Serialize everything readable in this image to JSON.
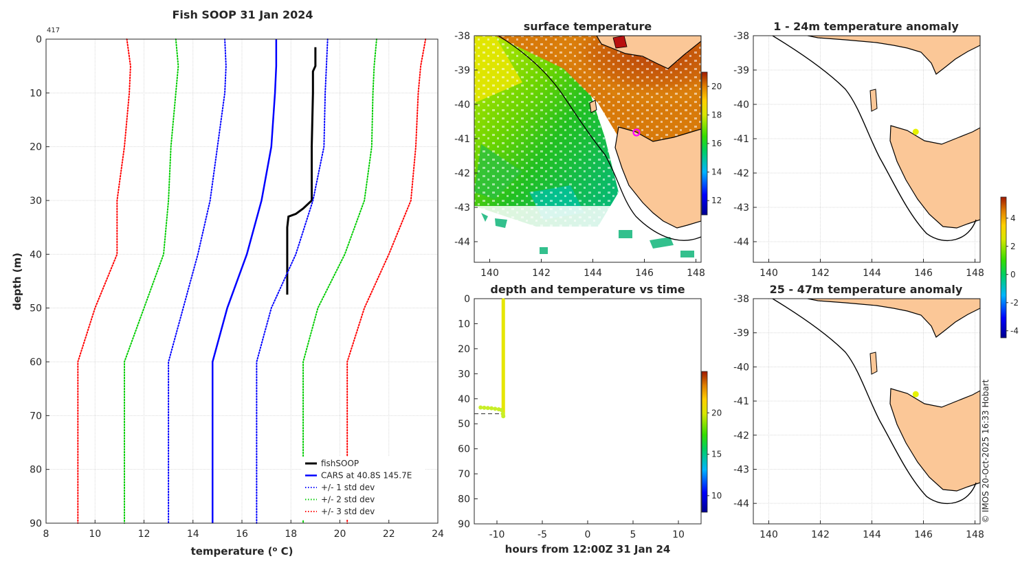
{
  "chart_data": [
    {
      "id": "profile",
      "type": "line",
      "title": "Fish SOOP 31 Jan 2024",
      "xlabel": "temperature (",
      "xlabel_sup": "o",
      "xlabel_tail": " C)",
      "ylabel": "depth (m)",
      "corner_label": "417",
      "xlim": [
        8,
        24
      ],
      "ylim": [
        0,
        90
      ],
      "xticks": [
        8,
        10,
        12,
        14,
        16,
        18,
        20,
        22,
        24
      ],
      "yticks": [
        0,
        10,
        20,
        30,
        40,
        50,
        60,
        70,
        80,
        90
      ],
      "legend_position": "bottom-right",
      "series": [
        {
          "name": "fishSOOP",
          "color": "#000000",
          "style": "solid",
          "width": 3,
          "points": [
            [
              19.0,
              1.5
            ],
            [
              19.0,
              5
            ],
            [
              18.9,
              6
            ],
            [
              18.9,
              10
            ],
            [
              18.85,
              20
            ],
            [
              18.85,
              30
            ],
            [
              18.5,
              31.5
            ],
            [
              18.2,
              32.5
            ],
            [
              17.9,
              33
            ],
            [
              17.85,
              35
            ],
            [
              17.85,
              40
            ],
            [
              17.85,
              47.5
            ]
          ]
        },
        {
          "name": "CARS at 40.8S 145.7E",
          "color": "#0000ff",
          "style": "solid",
          "width": 2.5,
          "points": [
            [
              17.4,
              0
            ],
            [
              17.4,
              5
            ],
            [
              17.35,
              10
            ],
            [
              17.2,
              20
            ],
            [
              16.8,
              30
            ],
            [
              16.2,
              40
            ],
            [
              15.4,
              50
            ],
            [
              14.8,
              60
            ],
            [
              14.8,
              70
            ],
            [
              14.8,
              80
            ],
            [
              14.8,
              90
            ]
          ]
        },
        {
          "name": "+/- 1 std dev",
          "color": "#0000ff",
          "style": "dotted",
          "width": 2,
          "points": [
            [
              15.3,
              0
            ],
            [
              15.35,
              5
            ],
            [
              15.3,
              10
            ],
            [
              15.0,
              20
            ],
            [
              14.7,
              30
            ],
            [
              14.2,
              40
            ],
            [
              13.6,
              50
            ],
            [
              13.0,
              60
            ],
            [
              13.0,
              70
            ],
            [
              13.0,
              80
            ],
            [
              13.0,
              90
            ]
          ]
        },
        {
          "name": "+/- 1 std dev",
          "color": "#0000ff",
          "style": "dotted",
          "width": 2,
          "legend": false,
          "points": [
            [
              19.5,
              0
            ],
            [
              19.45,
              5
            ],
            [
              19.4,
              10
            ],
            [
              19.35,
              20
            ],
            [
              18.9,
              30
            ],
            [
              18.2,
              40
            ],
            [
              17.2,
              50
            ],
            [
              16.6,
              60
            ],
            [
              16.6,
              70
            ],
            [
              16.6,
              80
            ],
            [
              16.6,
              90
            ]
          ]
        },
        {
          "name": "+/- 2 std dev",
          "color": "#00cc00",
          "style": "dotted",
          "width": 2,
          "points": [
            [
              13.3,
              0
            ],
            [
              13.4,
              5
            ],
            [
              13.3,
              10
            ],
            [
              13.1,
              20
            ],
            [
              13.0,
              30
            ],
            [
              12.8,
              40
            ],
            [
              12.0,
              50
            ],
            [
              11.2,
              60
            ],
            [
              11.2,
              70
            ],
            [
              11.2,
              80
            ],
            [
              11.2,
              90
            ]
          ]
        },
        {
          "name": "+/- 2 std dev",
          "color": "#00cc00",
          "style": "dotted",
          "width": 2,
          "legend": false,
          "points": [
            [
              21.5,
              0
            ],
            [
              21.4,
              5
            ],
            [
              21.35,
              10
            ],
            [
              21.3,
              20
            ],
            [
              21.0,
              30
            ],
            [
              20.2,
              40
            ],
            [
              19.1,
              50
            ],
            [
              18.5,
              60
            ],
            [
              18.5,
              70
            ],
            [
              18.5,
              80
            ],
            [
              18.5,
              90
            ]
          ]
        },
        {
          "name": "+/- 3 std dev",
          "color": "#ff0000",
          "style": "dotted",
          "width": 2,
          "points": [
            [
              11.3,
              0
            ],
            [
              11.45,
              5
            ],
            [
              11.4,
              10
            ],
            [
              11.2,
              20
            ],
            [
              10.9,
              30
            ],
            [
              10.9,
              40
            ],
            [
              10.0,
              50
            ],
            [
              9.3,
              60
            ],
            [
              9.3,
              70
            ],
            [
              9.3,
              80
            ],
            [
              9.3,
              90
            ]
          ]
        },
        {
          "name": "+/- 3 std dev",
          "color": "#ff0000",
          "style": "dotted",
          "width": 2,
          "legend": false,
          "points": [
            [
              23.5,
              0
            ],
            [
              23.3,
              5
            ],
            [
              23.2,
              10
            ],
            [
              23.1,
              20
            ],
            [
              22.9,
              30
            ],
            [
              22.0,
              40
            ],
            [
              21.0,
              50
            ],
            [
              20.3,
              60
            ],
            [
              20.3,
              70
            ],
            [
              20.3,
              80
            ],
            [
              20.3,
              90
            ]
          ]
        }
      ]
    },
    {
      "id": "sst",
      "type": "heatmap",
      "title": "surface temperature",
      "xlim": [
        139.4,
        148.2
      ],
      "ylim": [
        -44.6,
        -38
      ],
      "xticks": [
        140,
        142,
        144,
        146,
        148
      ],
      "yticks": [
        -38,
        -39,
        -40,
        -41,
        -42,
        -43,
        -44
      ],
      "colorbar": {
        "range": [
          11,
          21
        ],
        "ticks": [
          12,
          14,
          16,
          18,
          20
        ]
      }
    },
    {
      "id": "depth-time",
      "type": "scatter",
      "title": "depth and temperature vs time",
      "xlabel": "hours from 12:00Z 31 Jan 24",
      "xlim": [
        -12.5,
        12.5
      ],
      "ylim": [
        0,
        90
      ],
      "xticks": [
        -10,
        -5,
        0,
        5,
        10
      ],
      "yticks": [
        0,
        10,
        20,
        30,
        40,
        50,
        60,
        70,
        80,
        90
      ],
      "colorbar": {
        "range": [
          8,
          25
        ],
        "ticks": [
          10,
          15,
          20
        ]
      },
      "bottom_line_depth": 46,
      "cast_time": -9.3,
      "cast_depth_range": [
        0.5,
        47
      ],
      "cast_color": "#e6e600",
      "tow_points": [
        [
          -11.8,
          43.5
        ],
        [
          -11.4,
          43.6
        ],
        [
          -11.0,
          43.7
        ],
        [
          -10.6,
          43.8
        ],
        [
          -10.2,
          44.0
        ],
        [
          -9.8,
          44.2
        ],
        [
          -9.5,
          44.5
        ],
        [
          -9.35,
          46
        ],
        [
          -9.3,
          47
        ]
      ],
      "tow_color": "#c8ee28"
    },
    {
      "id": "anom-1-24",
      "type": "heatmap",
      "title": "1 - 24m temperature anomaly",
      "xlim": [
        139.4,
        148.2
      ],
      "ylim": [
        -44.6,
        -38
      ],
      "xticks": [
        140,
        142,
        144,
        146,
        148
      ],
      "yticks": [
        -38,
        -39,
        -40,
        -41,
        -42,
        -43,
        -44
      ],
      "point": {
        "lon": 145.7,
        "lat": -40.8,
        "color": "#e6f200"
      }
    },
    {
      "id": "anom-25-47",
      "type": "heatmap",
      "title": "25 - 47m temperature anomaly",
      "xlim": [
        139.4,
        148.2
      ],
      "ylim": [
        -44.6,
        -38
      ],
      "xticks": [
        140,
        142,
        144,
        146,
        148
      ],
      "yticks": [
        -38,
        -39,
        -40,
        -41,
        -42,
        -43,
        -44
      ],
      "point": {
        "lon": 145.7,
        "lat": -40.8,
        "color": "#e6f200"
      },
      "colorbar": {
        "range": [
          -4.5,
          5.5
        ],
        "ticks": [
          4,
          2,
          0,
          -2,
          -4
        ]
      }
    }
  ],
  "credit": "© IMOS 20-Oct-2025 16:33 Hobart",
  "colors": {
    "land": "#fbc797",
    "text": "#262626",
    "grid": "#d9d9d9"
  }
}
